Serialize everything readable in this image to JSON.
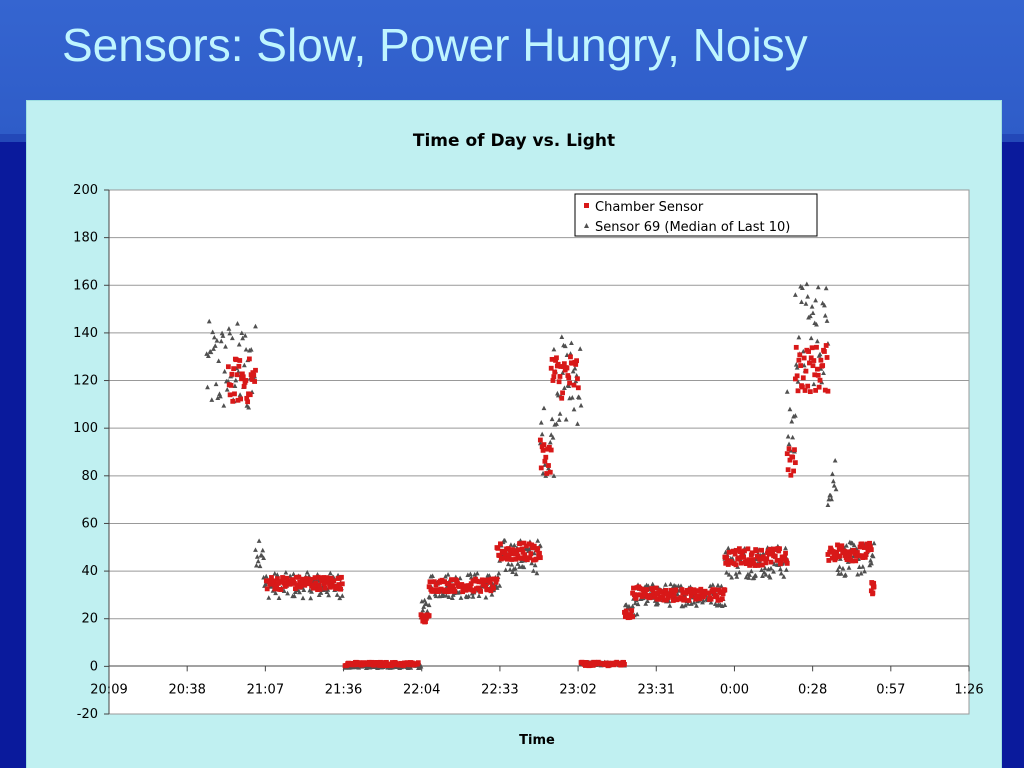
{
  "slide": {
    "title": "Sensors:  Slow, Power Hungry, Noisy"
  },
  "colors": {
    "title_text": "#bff5ff",
    "chart_background": "#c0f0f1",
    "plot_background": "#ffffff",
    "chamber_sensor": "#d81818",
    "sensor_69": "#505050",
    "gridline": "#999999"
  },
  "chart_data": {
    "type": "scatter",
    "title": "Time of Day vs. Light",
    "xlabel": "Time",
    "ylabel": "",
    "x_ticks": [
      "20:09",
      "20:38",
      "21:07",
      "21:36",
      "22:04",
      "22:33",
      "23:02",
      "23:31",
      "0:00",
      "0:28",
      "0:57",
      "1:26"
    ],
    "y_ticks": [
      "200",
      "180",
      "160",
      "140",
      "120",
      "100",
      "80",
      "60",
      "40",
      "20",
      "0",
      "-20"
    ],
    "xlim": [
      "20:09",
      "1:26"
    ],
    "ylim": [
      -20,
      200
    ],
    "grid": "horizontal major gridlines",
    "legend": "top-right",
    "series": [
      {
        "name": "Chamber Sensor",
        "marker": "square",
        "color": "#d81818",
        "segments": [
          {
            "from": "20:53",
            "to": "21:03",
            "level": 120
          },
          {
            "from": "21:07",
            "to": "21:35",
            "level": 35
          },
          {
            "from": "21:36",
            "to": "22:03",
            "level": 1
          },
          {
            "from": "22:04",
            "to": "22:07",
            "level": 20
          },
          {
            "from": "22:07",
            "to": "22:32",
            "level": 34
          },
          {
            "from": "22:32",
            "to": "22:48",
            "level": 48
          },
          {
            "from": "22:48",
            "to": "22:52",
            "level": 88
          },
          {
            "from": "22:52",
            "to": "23:02",
            "level": 122
          },
          {
            "from": "23:03",
            "to": "23:19",
            "level": 1
          },
          {
            "from": "23:19",
            "to": "23:22",
            "level": 22
          },
          {
            "from": "23:22",
            "to": "23:31",
            "level": 31
          },
          {
            "from": "23:31",
            "to": "23:56",
            "level": 30
          },
          {
            "from": "23:56",
            "to": "0:19",
            "level": 46
          },
          {
            "from": "0:19",
            "to": "0:22",
            "level": 85
          },
          {
            "from": "0:22",
            "to": "0:34",
            "level": 125
          },
          {
            "from": "0:34",
            "to": "0:50",
            "level": 48
          },
          {
            "from": "0:50",
            "to": "0:51",
            "level": 33
          }
        ]
      },
      {
        "name": "Sensor 69 (Median of Last 10)",
        "marker": "triangle",
        "color": "#505050",
        "segments": [
          {
            "from": "20:45",
            "to": "21:03",
            "level": 125
          },
          {
            "from": "21:03",
            "to": "21:06",
            "level": 50
          },
          {
            "from": "21:06",
            "to": "21:35",
            "level": 34
          },
          {
            "from": "21:36",
            "to": "22:04",
            "level": 0
          },
          {
            "from": "22:04",
            "to": "22:07",
            "level": 24
          },
          {
            "from": "22:07",
            "to": "22:33",
            "level": 34
          },
          {
            "from": "22:33",
            "to": "22:48",
            "level": 46
          },
          {
            "from": "22:48",
            "to": "22:53",
            "level": 95
          },
          {
            "from": "22:53",
            "to": "23:03",
            "level": 120
          },
          {
            "from": "23:03",
            "to": "23:19",
            "level": 1
          },
          {
            "from": "23:19",
            "to": "23:24",
            "level": 25
          },
          {
            "from": "23:24",
            "to": "23:56",
            "level": 30
          },
          {
            "from": "23:56",
            "to": "0:19",
            "level": 44
          },
          {
            "from": "0:19",
            "to": "0:22",
            "level": 100
          },
          {
            "from": "0:22",
            "to": "0:34",
            "level": 140
          },
          {
            "from": "0:34",
            "to": "0:37",
            "level": 80
          },
          {
            "from": "0:37",
            "to": "0:51",
            "level": 45
          }
        ]
      }
    ]
  }
}
